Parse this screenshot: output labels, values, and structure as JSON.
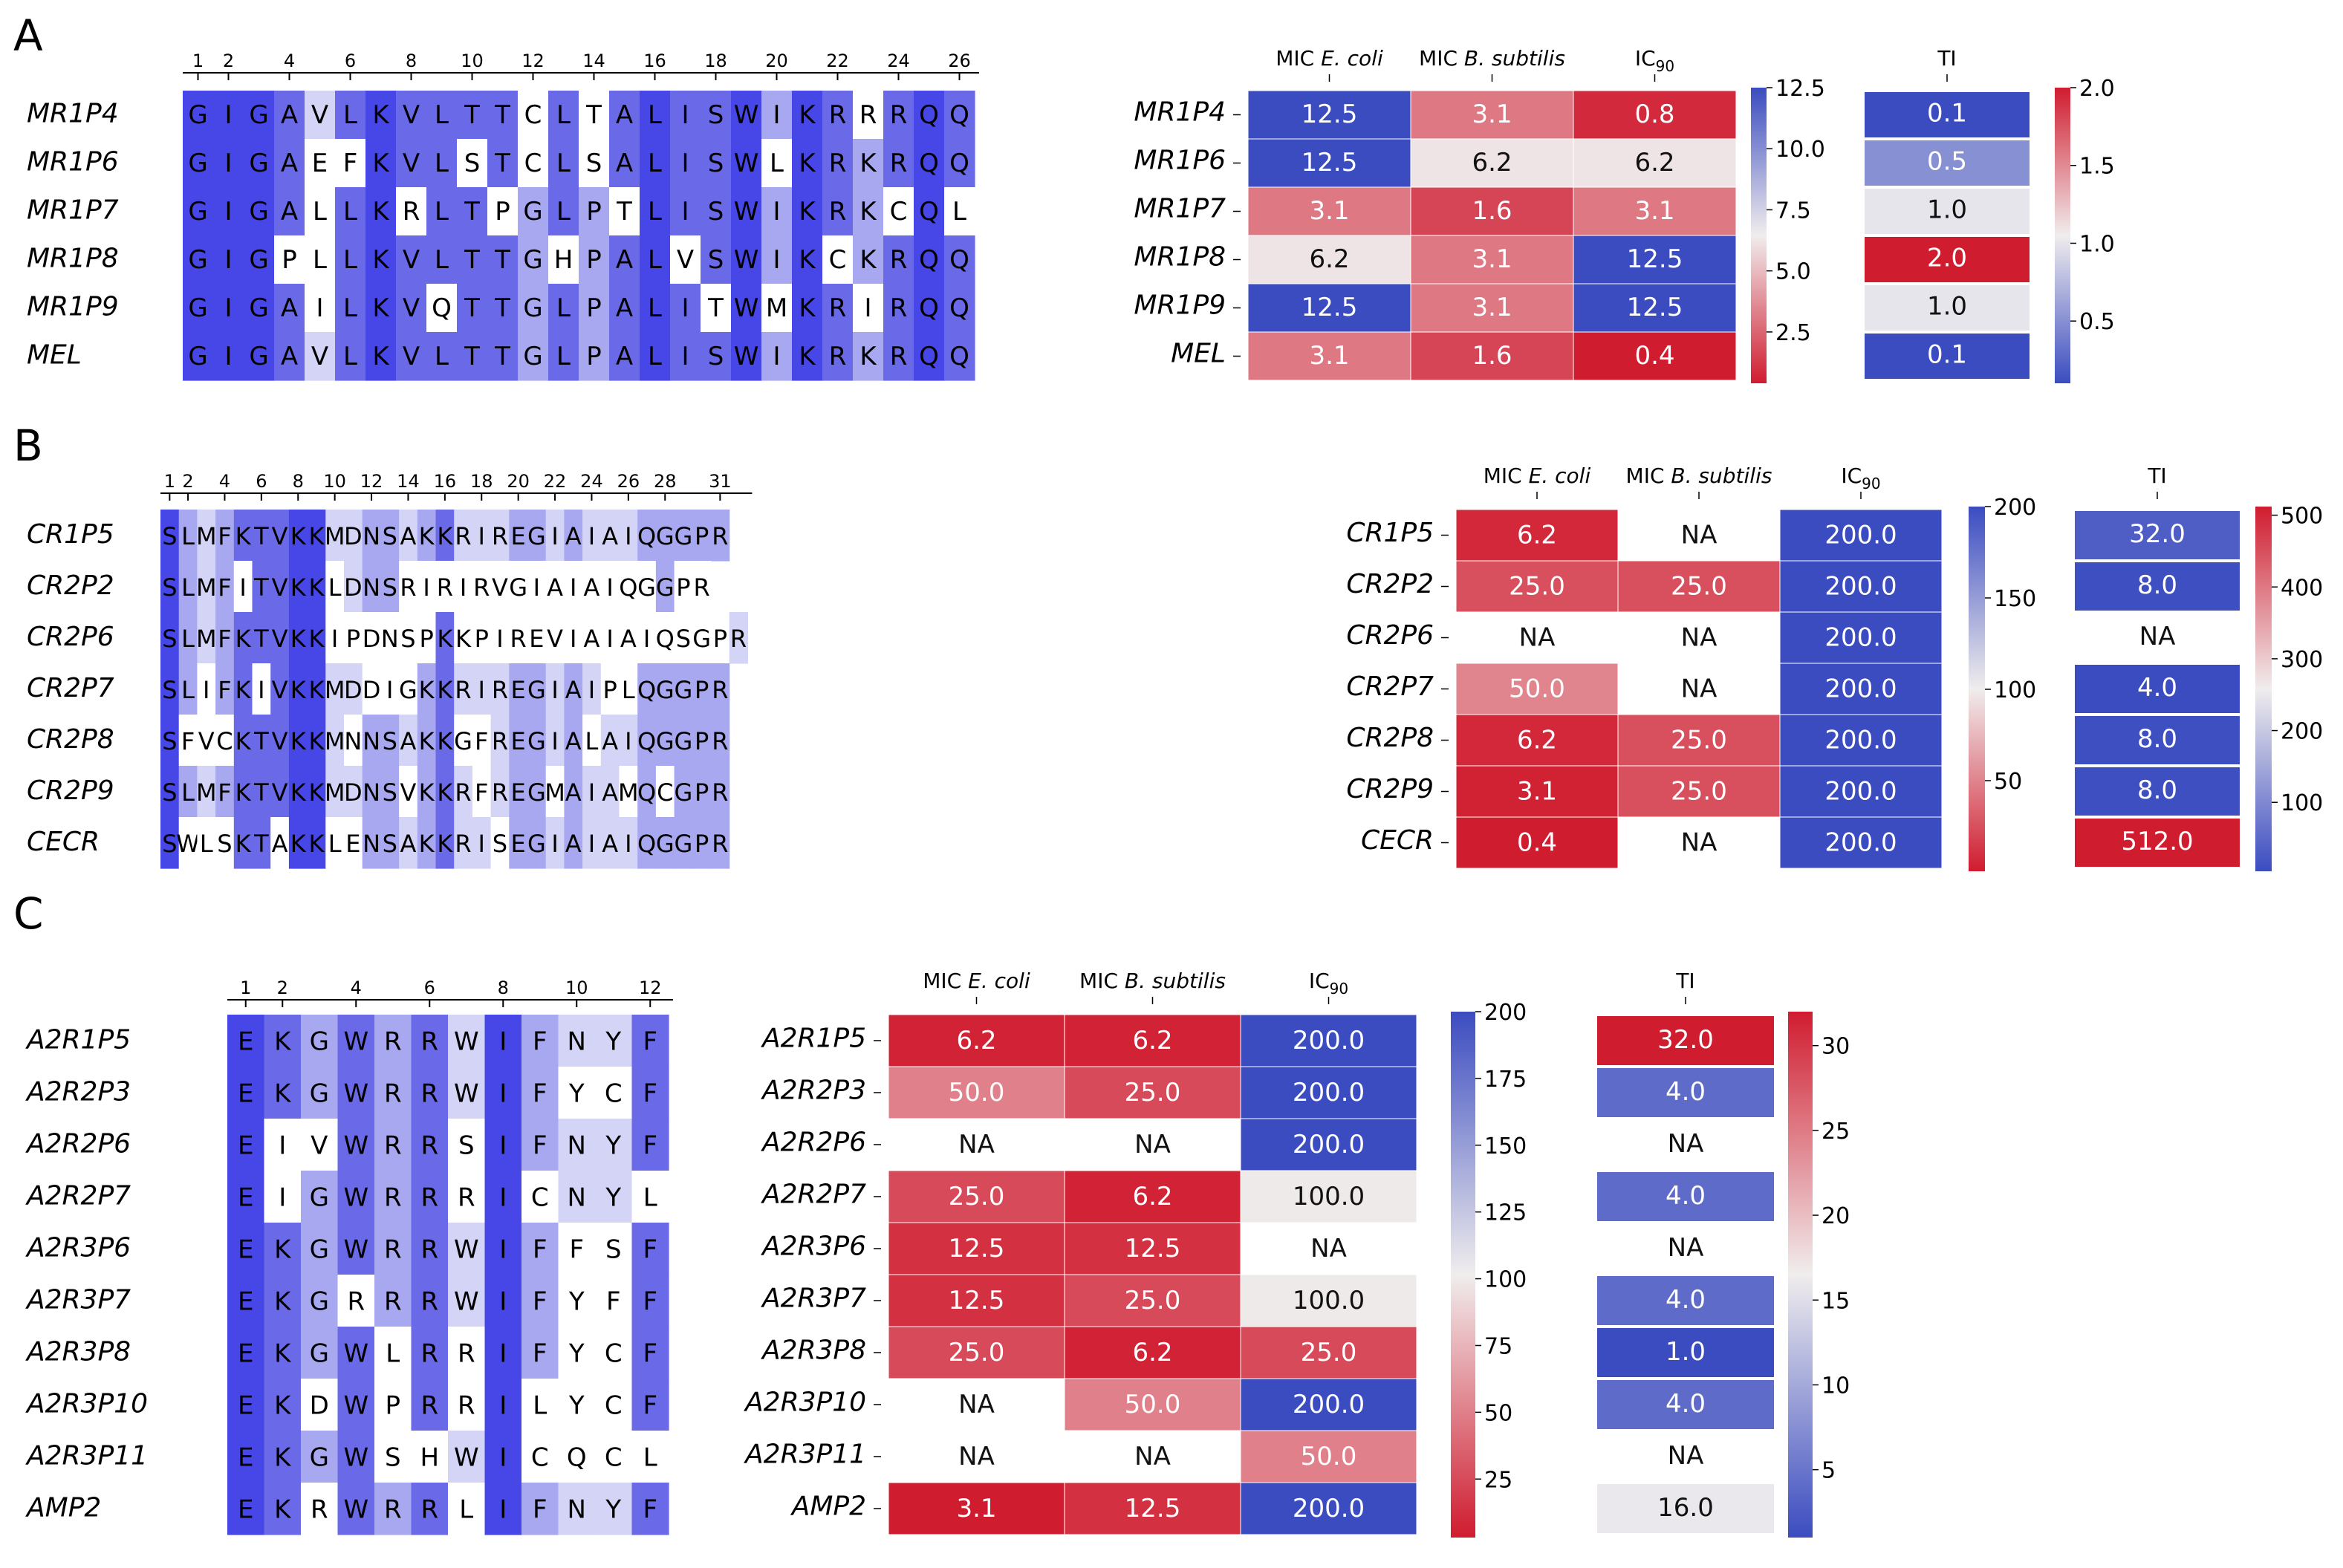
{
  "colors": {
    "strong_blue": "#4747e8",
    "mid_blue": "#6a6ae9",
    "pale_blue": "#a8a8f0",
    "very_pale_blue": "#d4d4f6",
    "heat_blue": "#3b4cc0",
    "heat_white": "#f0eded",
    "heat_red": "#d01c2f",
    "grid": "#ffffff",
    "text_dark": "#000000"
  },
  "panels": [
    {
      "label": "A",
      "names": [
        "MR1P4",
        "MR1P6",
        "MR1P7",
        "MR1P8",
        "MR1P9",
        "MEL"
      ],
      "sequences": [
        "GIGAVLKVLTTCLTALISWIKRRRQQ",
        "GIGAEFKVLSTCLSALISWLKRKRQQ",
        "GIGALLKRLTPGLPTLISWIKRKCQL",
        "GIGPLLKVLTTGHPALVSWIKCKRQQ",
        "GIGAILKVQTTGLPALITWMKRIRQQ",
        "GIGAVLKVLTTGLPALISWIKRKRQQ"
      ],
      "ruler_ticks": [
        "1",
        "2",
        "4",
        "6",
        "8",
        "10",
        "12",
        "14",
        "16",
        "18",
        "20",
        "22",
        "24",
        "26"
      ],
      "ruler_tick_positions": [
        1,
        2,
        4,
        6,
        8,
        10,
        12,
        14,
        16,
        18,
        20,
        22,
        24,
        26
      ],
      "heatmap": {
        "columns": [
          {
            "prefix": "MIC ",
            "species": "E. coli"
          },
          {
            "prefix": "MIC ",
            "species": "B. subtilis"
          },
          {
            "prefix": "IC",
            "sub": "90"
          }
        ],
        "values": [
          [
            "12.5",
            "3.1",
            "0.8"
          ],
          [
            "12.5",
            "6.2",
            "6.2"
          ],
          [
            "3.1",
            "1.6",
            "3.1"
          ],
          [
            "6.2",
            "3.1",
            "12.5"
          ],
          [
            "12.5",
            "3.1",
            "12.5"
          ],
          [
            "3.1",
            "1.6",
            "0.4"
          ]
        ],
        "vmin": 0.4,
        "vmax": 12.5,
        "colorbar_ticks": [
          "12.5",
          "10.0",
          "7.5",
          "5.0",
          "2.5"
        ]
      },
      "ti": {
        "title": "TI",
        "values": [
          "0.1",
          "0.5",
          "1.0",
          "2.0",
          "1.0",
          "0.1"
        ],
        "vmin": 0.1,
        "vmax": 2.0,
        "colorbar_ticks": [
          "2.0",
          "1.5",
          "1.0",
          "0.5"
        ]
      }
    },
    {
      "label": "B",
      "names": [
        "CR1P5",
        "CR2P2",
        "CR2P6",
        "CR2P7",
        "CR2P8",
        "CR2P9",
        "CECR"
      ],
      "sequences": [
        "SLMFKTVKKMDNSAKKRIREGIAIAIQGGPR",
        "SLMFITVKKLDNSRIRIRVGIAIAIQGGPR",
        "SLMFKTVKKIPDNSPKKPIREVIAIAIQSGPR",
        "SLIFKIVKKMDDIGKKRIREGIAIPLQGGPR",
        "SFVCKTVKKMNNSAKKGFREGIALAIQGGPR",
        "SLMFKTVKKMDNSVKKRFREGMAIAMQCGPR",
        "SWLSKTAKKLENSAKKRISEGIAIAIQGGPR"
      ],
      "ruler_ticks": [
        "1",
        "2",
        "4",
        "6",
        "8",
        "10",
        "12",
        "14",
        "16",
        "18",
        "20",
        "22",
        "24",
        "26",
        "28",
        "31"
      ],
      "ruler_tick_positions": [
        1,
        2,
        4,
        6,
        8,
        10,
        12,
        14,
        16,
        18,
        20,
        22,
        24,
        26,
        28,
        31
      ],
      "heatmap": {
        "columns": [
          {
            "prefix": "MIC ",
            "species": "E. coli"
          },
          {
            "prefix": "MIC ",
            "species": "B. subtilis"
          },
          {
            "prefix": "IC",
            "sub": "90"
          }
        ],
        "values": [
          [
            "6.2",
            "NA",
            "200.0"
          ],
          [
            "25.0",
            "25.0",
            "200.0"
          ],
          [
            "NA",
            "NA",
            "200.0"
          ],
          [
            "50.0",
            "NA",
            "200.0"
          ],
          [
            "6.2",
            "25.0",
            "200.0"
          ],
          [
            "3.1",
            "25.0",
            "200.0"
          ],
          [
            "0.4",
            "NA",
            "200.0"
          ]
        ],
        "vmin": 0.4,
        "vmax": 200,
        "colorbar_ticks": [
          "200",
          "150",
          "100",
          "50"
        ]
      },
      "ti": {
        "title": "TI",
        "values": [
          "32.0",
          "8.0",
          "NA",
          "4.0",
          "8.0",
          "8.0",
          "512.0"
        ],
        "vmin": 4,
        "vmax": 512,
        "colorbar_ticks": [
          "500",
          "400",
          "300",
          "200",
          "100"
        ]
      }
    },
    {
      "label": "C",
      "names": [
        "A2R1P5",
        "A2R2P3",
        "A2R2P6",
        "A2R2P7",
        "A2R3P6",
        "A2R3P7",
        "A2R3P8",
        "A2R3P10",
        "A2R3P11",
        "AMP2"
      ],
      "sequences": [
        "EKGWRRWIFNYF",
        "EKGWRRWIFYCF",
        "EIVWRRSIFNYF",
        "EIGWRRRICNYL",
        "EKGWRRWIFFSF",
        "EKGRRRWIFYFF",
        "EKGWLRRIFYCF",
        "EKDWPRRILYCF",
        "EKGWSHWICQCL",
        "EKRWRRLIFNYF"
      ],
      "ruler_ticks": [
        "1",
        "2",
        "4",
        "6",
        "8",
        "10",
        "12"
      ],
      "ruler_tick_positions": [
        1,
        2,
        4,
        6,
        8,
        10,
        12
      ],
      "heatmap": {
        "columns": [
          {
            "prefix": "MIC ",
            "species": "E. coli"
          },
          {
            "prefix": "MIC ",
            "species": "B. subtilis"
          },
          {
            "prefix": "IC",
            "sub": "90"
          }
        ],
        "values": [
          [
            "6.2",
            "6.2",
            "200.0"
          ],
          [
            "50.0",
            "25.0",
            "200.0"
          ],
          [
            "NA",
            "NA",
            "200.0"
          ],
          [
            "25.0",
            "6.2",
            "100.0"
          ],
          [
            "12.5",
            "12.5",
            "NA"
          ],
          [
            "12.5",
            "25.0",
            "100.0"
          ],
          [
            "25.0",
            "6.2",
            "25.0"
          ],
          [
            "NA",
            "50.0",
            "200.0"
          ],
          [
            "NA",
            "NA",
            "50.0"
          ],
          [
            "3.1",
            "12.5",
            "200.0"
          ]
        ],
        "vmin": 3.1,
        "vmax": 200,
        "colorbar_ticks": [
          "200",
          "175",
          "150",
          "125",
          "100",
          "75",
          "50",
          "25"
        ]
      },
      "ti": {
        "title": "TI",
        "values": [
          "32.0",
          "4.0",
          "NA",
          "4.0",
          "NA",
          "4.0",
          "1.0",
          "4.0",
          "NA",
          "16.0"
        ],
        "vmin": 1,
        "vmax": 32,
        "colorbar_ticks": [
          "30",
          "25",
          "20",
          "15",
          "10",
          "5"
        ]
      }
    }
  ]
}
